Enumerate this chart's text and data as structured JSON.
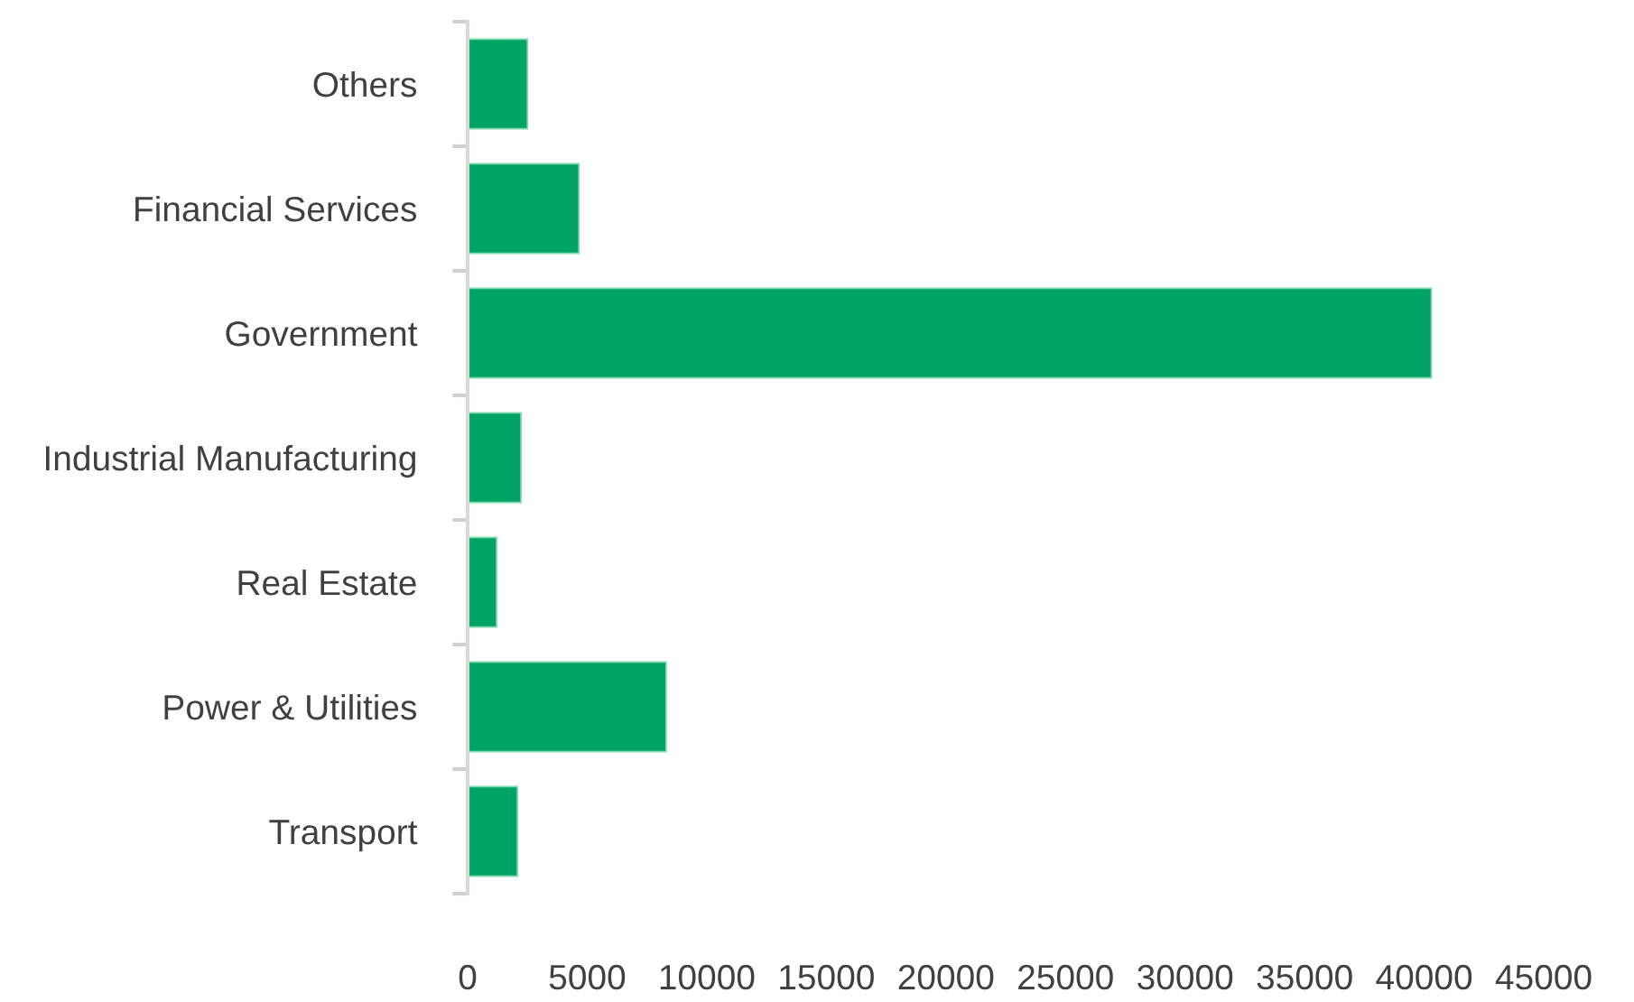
{
  "chart_data": {
    "type": "bar",
    "orientation": "horizontal",
    "categories": [
      "Others",
      "Financial Services",
      "Government",
      "Industrial Manufacturing",
      "Real Estate",
      "Power & Utilities",
      "Transport"
    ],
    "values": [
      2500,
      4650,
      40300,
      2230,
      1210,
      8300,
      2080
    ],
    "color": "#00a464",
    "xlim": [
      0,
      45000
    ],
    "xticks": [
      0,
      5000,
      10000,
      15000,
      20000,
      25000,
      30000,
      35000,
      40000,
      45000
    ],
    "grid": false,
    "legend": false
  }
}
